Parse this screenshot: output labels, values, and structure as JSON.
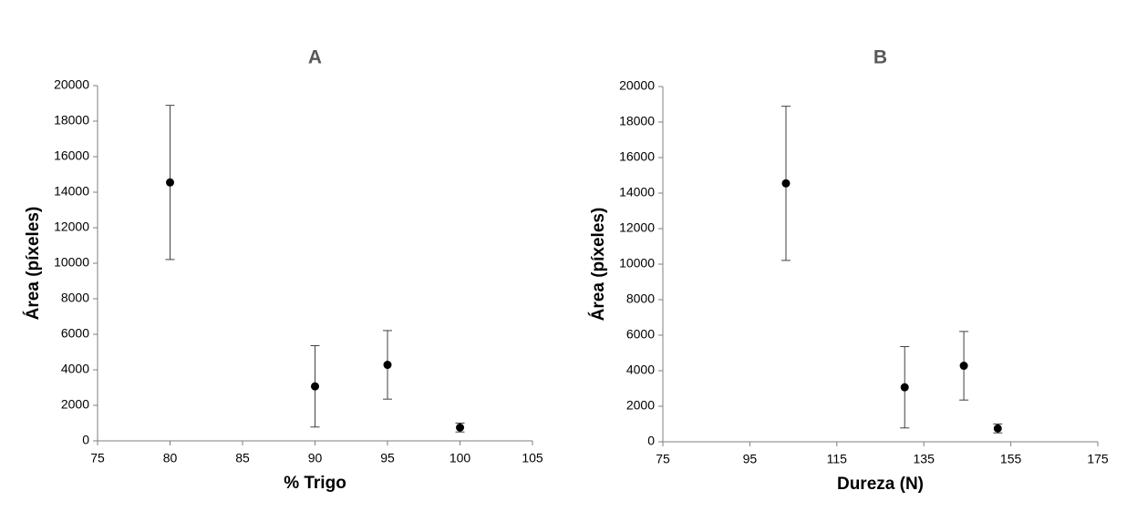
{
  "chart_data": [
    {
      "type": "scatter",
      "title": "A",
      "xlabel": "%  Trigo",
      "ylabel": "Área (píxeles)",
      "x": [
        80,
        90,
        95,
        100
      ],
      "values": [
        14550,
        3070,
        4280,
        750
      ],
      "errors": [
        4340,
        2290,
        1930,
        250
      ],
      "color": "#000000",
      "xlim": [
        75,
        105
      ],
      "xticks": [
        75,
        80,
        85,
        90,
        95,
        100,
        105
      ],
      "ylim": [
        0,
        20000
      ],
      "yticks": [
        0,
        2000,
        4000,
        6000,
        8000,
        10000,
        12000,
        14000,
        16000,
        18000,
        20000
      ]
    },
    {
      "type": "scatter",
      "title": "B",
      "xlabel": "Dureza (N)",
      "ylabel": "Área (píxeles)",
      "x": [
        103.3,
        130.6,
        144.2,
        152
      ],
      "values": [
        14550,
        3070,
        4280,
        750
      ],
      "errors": [
        4340,
        2290,
        1930,
        250
      ],
      "color": "#000000",
      "xlim": [
        75,
        175
      ],
      "xticks": [
        75,
        95,
        115,
        135,
        155,
        175
      ],
      "ylim": [
        0,
        20000
      ],
      "yticks": [
        0,
        2000,
        4000,
        6000,
        8000,
        10000,
        12000,
        14000,
        16000,
        18000,
        20000
      ]
    }
  ]
}
